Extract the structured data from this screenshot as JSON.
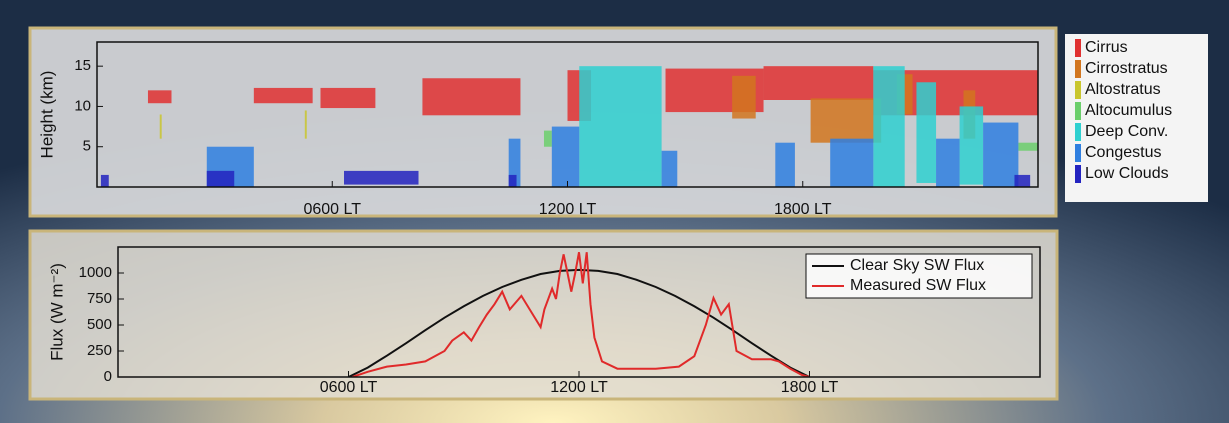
{
  "chart_data": [
    {
      "type": "cloudmap",
      "ylabel": "Height (km)",
      "xlim": [
        0,
        24
      ],
      "xticks": [
        {
          "value": 6,
          "label": "0600 LT"
        },
        {
          "value": 12,
          "label": "1200 LT"
        },
        {
          "value": 18,
          "label": "1800 LT"
        }
      ],
      "ylim": [
        0,
        18
      ],
      "yticks": [
        5,
        10,
        15
      ],
      "series": [
        {
          "name": "Cirrus",
          "color": "#e03131",
          "boxes": [
            [
              1.3,
              1.9,
              10.4,
              12
            ],
            [
              4.0,
              5.5,
              10.4,
              12.3
            ],
            [
              5.7,
              7.1,
              9.8,
              12.3
            ],
            [
              8.3,
              10.8,
              8.9,
              13.5
            ],
            [
              12.0,
              12.6,
              8.2,
              14.5
            ],
            [
              14.5,
              17,
              9.3,
              14.7
            ],
            [
              17,
              19.8,
              10.8,
              15
            ],
            [
              19.8,
              24,
              8.9,
              14.5
            ]
          ]
        },
        {
          "name": "Cirrostratus",
          "color": "#d2761f",
          "boxes": [
            [
              16.2,
              16.8,
              8.5,
              13.8
            ],
            [
              18.2,
              20,
              5.5,
              11
            ],
            [
              20.4,
              20.8,
              9,
              14
            ],
            [
              22.1,
              22.4,
              6,
              12
            ]
          ]
        },
        {
          "name": "Altostratus",
          "color": "#c9c62e",
          "boxes": [
            [
              1.6,
              1.65,
              6,
              9
            ],
            [
              5.3,
              5.35,
              6,
              9.5
            ]
          ]
        },
        {
          "name": "Altocumulus",
          "color": "#6ccf6c",
          "boxes": [
            [
              11.4,
              11.6,
              5,
              7
            ],
            [
              23.5,
              24,
              4.5,
              5.5
            ]
          ]
        },
        {
          "name": "Deep Conv.",
          "color": "#2fd0d0",
          "boxes": [
            [
              12.3,
              14.4,
              0,
              15
            ],
            [
              19.8,
              20.6,
              0,
              15
            ],
            [
              20.9,
              21.4,
              0.5,
              13
            ],
            [
              22.0,
              22.6,
              0.3,
              10
            ]
          ]
        },
        {
          "name": "Congestus",
          "color": "#2f7fe0",
          "boxes": [
            [
              2.8,
              4.0,
              0,
              5
            ],
            [
              10.5,
              10.8,
              0,
              6
            ],
            [
              11.6,
              12.3,
              0,
              7.5
            ],
            [
              14.4,
              14.8,
              0,
              4.5
            ],
            [
              17.3,
              17.8,
              0,
              5.5
            ],
            [
              18.7,
              19.8,
              0,
              6
            ],
            [
              21.4,
              22,
              0,
              6
            ],
            [
              22.6,
              23.5,
              0,
              8
            ]
          ]
        },
        {
          "name": "Low Clouds",
          "color": "#2323c0",
          "boxes": [
            [
              0.1,
              0.3,
              0,
              1.5
            ],
            [
              2.8,
              3.5,
              0,
              2
            ],
            [
              6.3,
              8.2,
              0.3,
              2
            ],
            [
              10.5,
              10.7,
              0,
              1.5
            ],
            [
              23.4,
              23.8,
              0,
              1.5
            ]
          ]
        }
      ]
    },
    {
      "type": "line",
      "ylabel": "Flux (W m⁻²)",
      "xlim": [
        0,
        24
      ],
      "xticks": [
        {
          "value": 6,
          "label": "0600 LT"
        },
        {
          "value": 12,
          "label": "1200 LT"
        },
        {
          "value": 18,
          "label": "1800 LT"
        }
      ],
      "ylim": [
        0,
        1250
      ],
      "yticks": [
        0,
        250,
        500,
        750,
        1000
      ],
      "series": [
        {
          "name": "Clear Sky SW Flux",
          "color": "#111111",
          "x": [
            6,
            6.5,
            7,
            7.5,
            8,
            8.5,
            9,
            9.5,
            10,
            10.5,
            11,
            11.5,
            12,
            12.5,
            13,
            13.5,
            14,
            14.5,
            15,
            15.5,
            16,
            16.5,
            17,
            17.5,
            18
          ],
          "values": [
            0,
            90,
            205,
            325,
            450,
            570,
            680,
            780,
            865,
            935,
            990,
            1020,
            1030,
            1020,
            990,
            935,
            865,
            780,
            680,
            570,
            450,
            325,
            205,
            90,
            0
          ]
        },
        {
          "name": "Measured SW Flux",
          "color": "#e02a2a",
          "x": [
            6.1,
            6.5,
            7,
            7.5,
            8,
            8.5,
            8.7,
            9,
            9.2,
            9.4,
            9.6,
            9.8,
            10,
            10.2,
            10.5,
            10.8,
            11,
            11.1,
            11.3,
            11.4,
            11.5,
            11.6,
            11.7,
            11.8,
            11.9,
            12,
            12.1,
            12.2,
            12.3,
            12.4,
            12.6,
            13,
            14,
            14.6,
            15,
            15.3,
            15.5,
            15.7,
            15.9,
            16.1,
            16.5,
            17,
            17.2,
            17.5,
            17.8,
            18
          ],
          "values": [
            0,
            50,
            100,
            120,
            150,
            250,
            350,
            430,
            350,
            480,
            600,
            700,
            820,
            650,
            780,
            600,
            480,
            650,
            850,
            750,
            1000,
            1180,
            1000,
            820,
            1000,
            1200,
            900,
            1200,
            700,
            380,
            150,
            80,
            80,
            100,
            200,
            500,
            760,
            600,
            700,
            250,
            170,
            170,
            150,
            80,
            20,
            0
          ]
        }
      ]
    }
  ]
}
